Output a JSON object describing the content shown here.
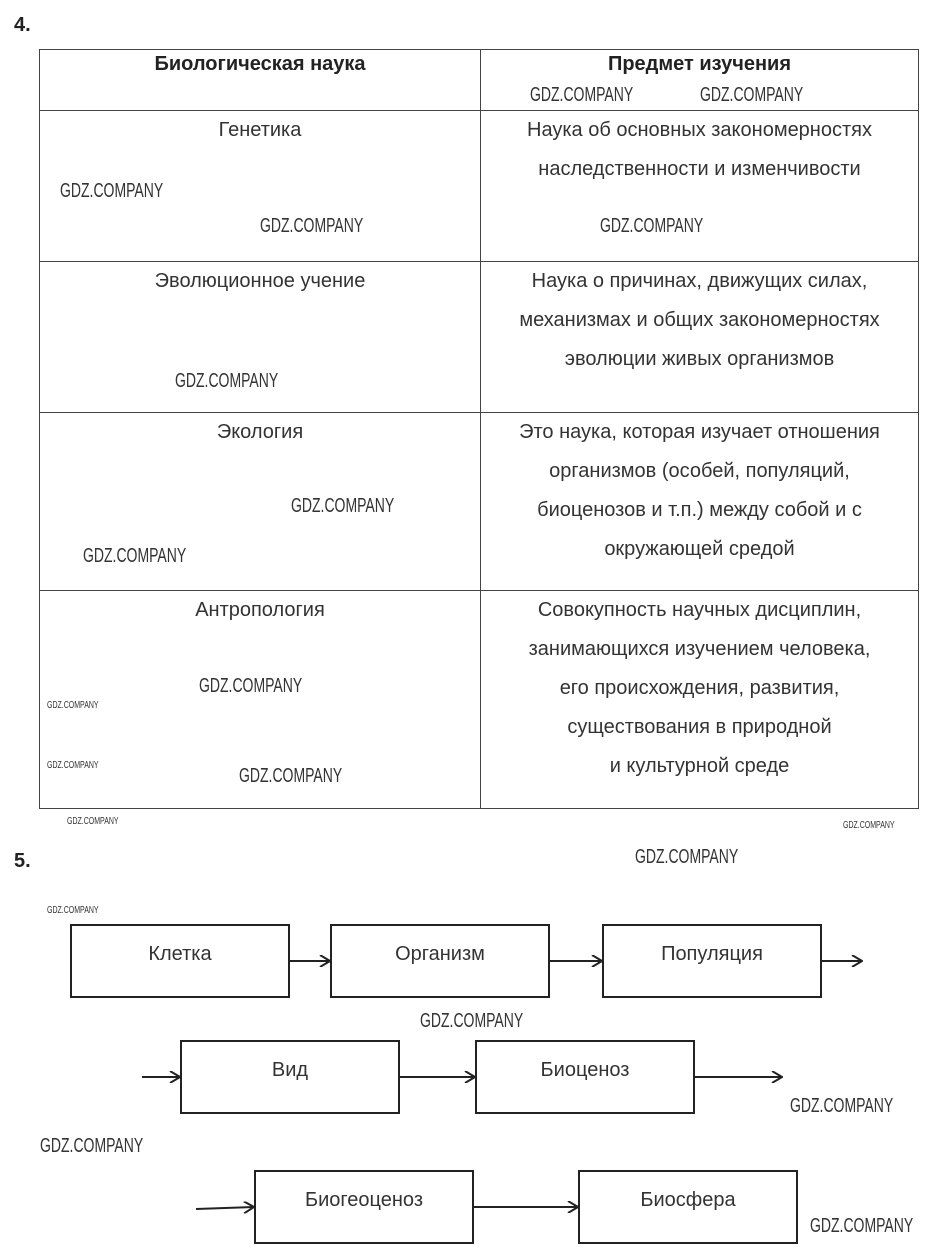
{
  "task4": {
    "number": "4.",
    "headers": [
      "Биологическая наука",
      "Предмет изучения"
    ],
    "rows": [
      {
        "science": "Генетика",
        "subject": [
          "Наука об основных закономерностях",
          "наследственности и изменчивости"
        ]
      },
      {
        "science": "Эволюционное учение",
        "subject": [
          "Наука о причинах, движущих силах,",
          "механизмах и общих закономерностях",
          "эволюции живых организмов"
        ]
      },
      {
        "science": "Экология",
        "subject": [
          "Это наука, которая изучает отношения",
          "организмов (особей, популяций,",
          "биоценозов и т.п.) между собой и с",
          "окружающей средой"
        ]
      },
      {
        "science": "Антропология",
        "subject": [
          "Совокупность научных дисциплин,",
          "занимающихся изучением человека,",
          "его происхождения, развития,",
          "существования в природной",
          "и культурной среде"
        ]
      }
    ]
  },
  "task5": {
    "number": "5.",
    "boxes": [
      "Клетка",
      "Организм",
      "Популяция",
      "Вид",
      "Биоценоз",
      "Биогеоценоз",
      "Биосфера"
    ]
  },
  "watermark": "GDZ.COMPANY"
}
